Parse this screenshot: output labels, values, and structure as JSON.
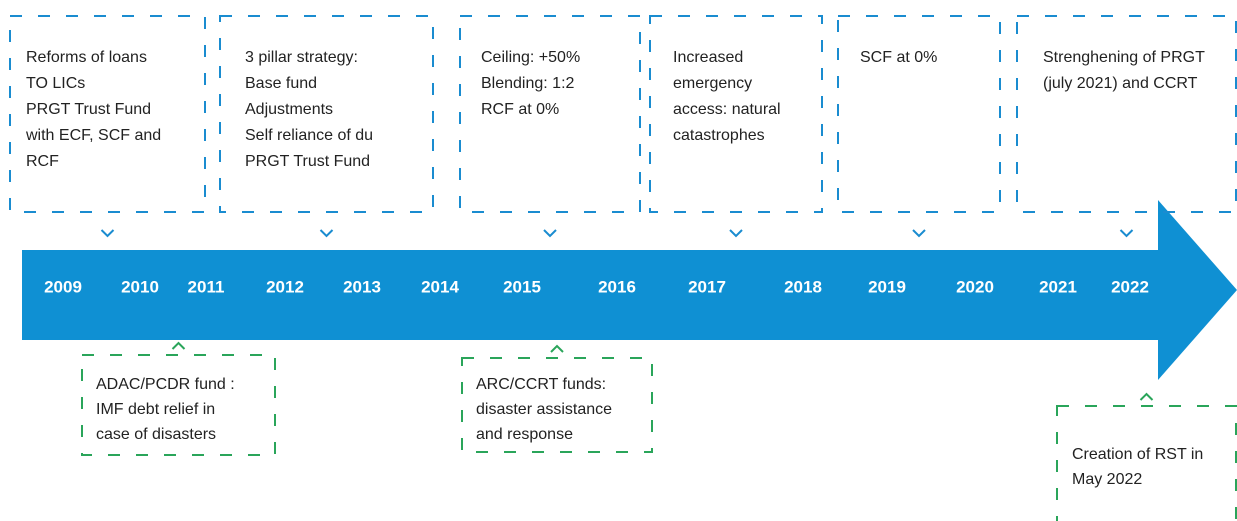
{
  "top_boxes": [
    {
      "lines": [
        "Reforms of loans",
        "TO LICs",
        "PRGT Trust Fund",
        "with ECF, SCF and",
        "RCF"
      ]
    },
    {
      "lines": [
        "3 pillar strategy:",
        "Base fund",
        "Adjustments",
        "Self reliance of du",
        "PRGT Trust Fund"
      ]
    },
    {
      "lines": [
        "Ceiling: +50%",
        "Blending: 1:2",
        "RCF at 0%"
      ]
    },
    {
      "lines": [
        "Increased",
        "emergency",
        "access: natural",
        "catastrophes"
      ]
    },
    {
      "lines": [
        "SCF at 0%"
      ]
    },
    {
      "lines": [
        "Strenghening of PRGT",
        "(july 2021) and CCRT"
      ]
    }
  ],
  "years": [
    "2009",
    "2010",
    "2011",
    "2012",
    "2013",
    "2014",
    "2015",
    "2016",
    "2017",
    "2018",
    "2019",
    "2020",
    "2021",
    "2022"
  ],
  "bottom_boxes": [
    {
      "lines": [
        "ADAC/PCDR fund :",
        "IMF debt relief in",
        "case of disasters"
      ]
    },
    {
      "lines": [
        "ARC/CCRT funds:",
        "disaster assistance",
        "and response"
      ]
    },
    {
      "lines": [
        "Creation of RST in",
        "May 2022"
      ]
    }
  ]
}
